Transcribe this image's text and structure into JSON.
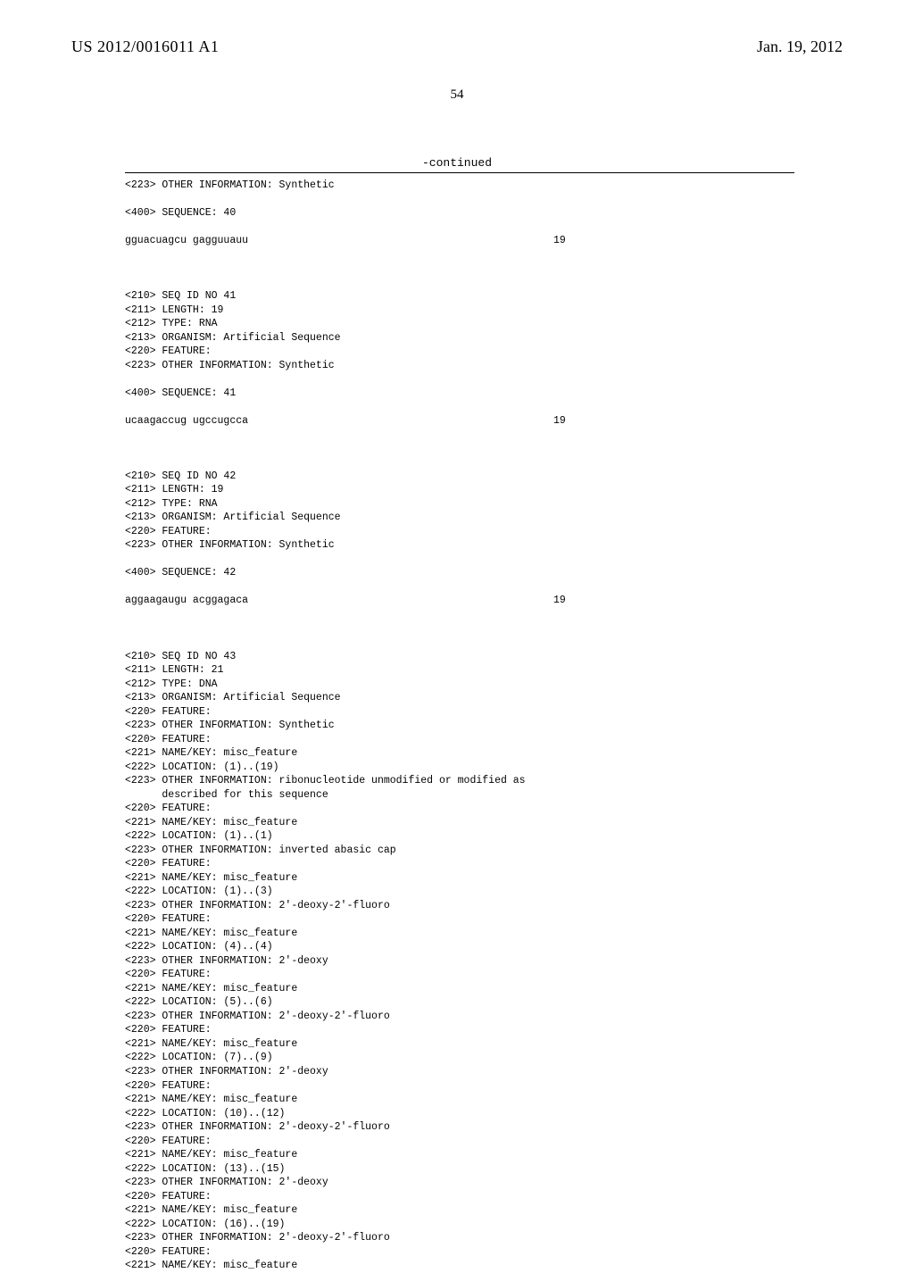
{
  "header": {
    "publication_number": "US 2012/0016011 A1",
    "publication_date": "Jan. 19, 2012"
  },
  "page_number": "54",
  "continued_label": "-continued",
  "sequences": [
    {
      "pre_lines": [
        "<223> OTHER INFORMATION: Synthetic"
      ],
      "sequence_header": "<400> SEQUENCE: 40",
      "sequence_text": "gguacuagcu gagguuauu",
      "sequence_length": "19"
    },
    {
      "pre_lines": [
        "<210> SEQ ID NO 41",
        "<211> LENGTH: 19",
        "<212> TYPE: RNA",
        "<213> ORGANISM: Artificial Sequence",
        "<220> FEATURE:",
        "<223> OTHER INFORMATION: Synthetic"
      ],
      "sequence_header": "<400> SEQUENCE: 41",
      "sequence_text": "ucaagaccug ugccugcca",
      "sequence_length": "19"
    },
    {
      "pre_lines": [
        "<210> SEQ ID NO 42",
        "<211> LENGTH: 19",
        "<212> TYPE: RNA",
        "<213> ORGANISM: Artificial Sequence",
        "<220> FEATURE:",
        "<223> OTHER INFORMATION: Synthetic"
      ],
      "sequence_header": "<400> SEQUENCE: 42",
      "sequence_text": "aggaagaugu acggagaca",
      "sequence_length": "19"
    },
    {
      "pre_lines": [
        "<210> SEQ ID NO 43",
        "<211> LENGTH: 21",
        "<212> TYPE: DNA",
        "<213> ORGANISM: Artificial Sequence",
        "<220> FEATURE:",
        "<223> OTHER INFORMATION: Synthetic",
        "<220> FEATURE:",
        "<221> NAME/KEY: misc_feature",
        "<222> LOCATION: (1)..(19)",
        "<223> OTHER INFORMATION: ribonucleotide unmodified or modified as",
        "      described for this sequence",
        "<220> FEATURE:",
        "<221> NAME/KEY: misc_feature",
        "<222> LOCATION: (1)..(1)",
        "<223> OTHER INFORMATION: inverted abasic cap",
        "<220> FEATURE:",
        "<221> NAME/KEY: misc_feature",
        "<222> LOCATION: (1)..(3)",
        "<223> OTHER INFORMATION: 2'-deoxy-2'-fluoro",
        "<220> FEATURE:",
        "<221> NAME/KEY: misc_feature",
        "<222> LOCATION: (4)..(4)",
        "<223> OTHER INFORMATION: 2'-deoxy",
        "<220> FEATURE:",
        "<221> NAME/KEY: misc_feature",
        "<222> LOCATION: (5)..(6)",
        "<223> OTHER INFORMATION: 2'-deoxy-2'-fluoro",
        "<220> FEATURE:",
        "<221> NAME/KEY: misc_feature",
        "<222> LOCATION: (7)..(9)",
        "<223> OTHER INFORMATION: 2'-deoxy",
        "<220> FEATURE:",
        "<221> NAME/KEY: misc_feature",
        "<222> LOCATION: (10)..(12)",
        "<223> OTHER INFORMATION: 2'-deoxy-2'-fluoro",
        "<220> FEATURE:",
        "<221> NAME/KEY: misc_feature",
        "<222> LOCATION: (13)..(15)",
        "<223> OTHER INFORMATION: 2'-deoxy",
        "<220> FEATURE:",
        "<221> NAME/KEY: misc_feature",
        "<222> LOCATION: (16)..(19)",
        "<223> OTHER INFORMATION: 2'-deoxy-2'-fluoro",
        "<220> FEATURE:",
        "<221> NAME/KEY: misc_feature"
      ],
      "sequence_header": "",
      "sequence_text": "",
      "sequence_length": ""
    }
  ]
}
